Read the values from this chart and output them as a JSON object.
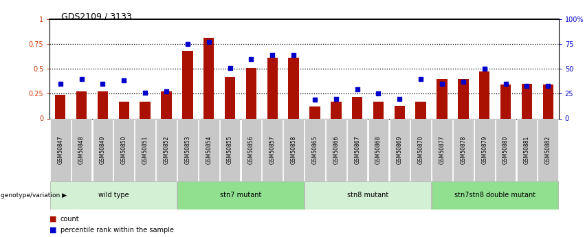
{
  "title": "GDS2109 / 3133",
  "samples": [
    "GSM50847",
    "GSM50848",
    "GSM50849",
    "GSM50850",
    "GSM50851",
    "GSM50852",
    "GSM50853",
    "GSM50854",
    "GSM50855",
    "GSM50856",
    "GSM50857",
    "GSM50858",
    "GSM50865",
    "GSM50866",
    "GSM50867",
    "GSM50868",
    "GSM50869",
    "GSM50870",
    "GSM50877",
    "GSM50878",
    "GSM50879",
    "GSM50880",
    "GSM50881",
    "GSM50882"
  ],
  "count_values": [
    0.24,
    0.27,
    0.27,
    0.17,
    0.17,
    0.27,
    0.68,
    0.81,
    0.42,
    0.51,
    0.61,
    0.61,
    0.12,
    0.17,
    0.22,
    0.17,
    0.13,
    0.17,
    0.4,
    0.4,
    0.47,
    0.34,
    0.35,
    0.34
  ],
  "percentile_values": [
    0.35,
    0.4,
    0.35,
    0.38,
    0.26,
    0.27,
    0.75,
    0.77,
    0.51,
    0.6,
    0.64,
    0.64,
    0.19,
    0.2,
    0.29,
    0.25,
    0.2,
    0.4,
    0.35,
    0.37,
    0.5,
    0.35,
    0.33,
    0.33
  ],
  "groups": [
    {
      "label": "wild type",
      "start": 0,
      "end": 6,
      "color": "#d4f0d4"
    },
    {
      "label": "stn7 mutant",
      "start": 6,
      "end": 12,
      "color": "#90e090"
    },
    {
      "label": "stn8 mutant",
      "start": 12,
      "end": 18,
      "color": "#d4f0d4"
    },
    {
      "label": "stn7stn8 double mutant",
      "start": 18,
      "end": 24,
      "color": "#90e090"
    }
  ],
  "bar_color": "#aa1100",
  "dot_color": "#0000cc",
  "background_color": "#ffffff",
  "label_bg_color": "#c8c8c8",
  "ylim_left": [
    0,
    1
  ],
  "ylim_right": [
    0,
    100
  ],
  "yticks_left": [
    0,
    0.25,
    0.5,
    0.75,
    1.0
  ],
  "ytick_labels_left": [
    "0",
    "0.25",
    "0.5",
    "0.75",
    "1"
  ],
  "yticks_right": [
    0,
    25,
    50,
    75,
    100
  ],
  "ytick_labels_right": [
    "0",
    "25",
    "50",
    "75",
    "100%"
  ],
  "genotype_label": "genotype/variation",
  "legend_count_label": "count",
  "legend_percentile_label": "percentile rank within the sample"
}
